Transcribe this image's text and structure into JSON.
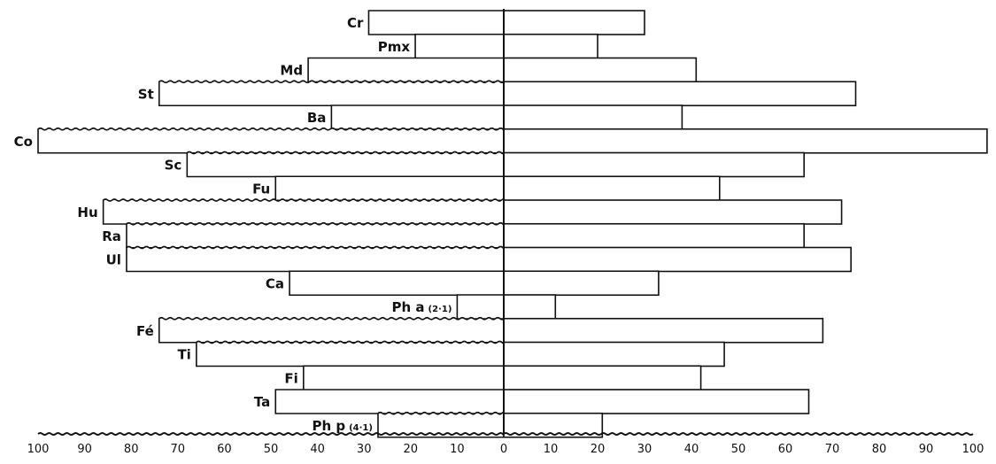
{
  "chart_data": {
    "type": "bar",
    "orientation": "horizontal",
    "layout": "two-sided",
    "categories": [
      {
        "label": "Cr",
        "note": ""
      },
      {
        "label": "Pmx",
        "note": ""
      },
      {
        "label": "Md",
        "note": ""
      },
      {
        "label": "St",
        "note": ""
      },
      {
        "label": "Ba",
        "note": ""
      },
      {
        "label": "Co",
        "note": ""
      },
      {
        "label": "Sc",
        "note": ""
      },
      {
        "label": "Fu",
        "note": ""
      },
      {
        "label": "Hu",
        "note": ""
      },
      {
        "label": "Ra",
        "note": ""
      },
      {
        "label": "Ul",
        "note": ""
      },
      {
        "label": "Ca",
        "note": ""
      },
      {
        "label": "Ph a",
        "note": "(2·1)"
      },
      {
        "label": "Fé",
        "note": ""
      },
      {
        "label": "Ti",
        "note": ""
      },
      {
        "label": "Fi",
        "note": ""
      },
      {
        "label": "Ta",
        "note": ""
      },
      {
        "label": "Ph p",
        "note": "(4·1)"
      }
    ],
    "series": [
      {
        "side": "left",
        "values": [
          29,
          19,
          42,
          74,
          37,
          100,
          68,
          49,
          86,
          81,
          81,
          46,
          10,
          74,
          66,
          43,
          49,
          27
        ]
      },
      {
        "side": "right",
        "values": [
          30,
          20,
          41,
          75,
          38,
          103,
          64,
          46,
          72,
          64,
          74,
          33,
          11,
          68,
          47,
          42,
          65,
          21
        ]
      }
    ],
    "xlim": [
      -100,
      100
    ],
    "xticks": [
      {
        "value": -100,
        "label": "100"
      },
      {
        "value": -90,
        "label": "90"
      },
      {
        "value": -80,
        "label": "80"
      },
      {
        "value": -70,
        "label": "70"
      },
      {
        "value": -60,
        "label": "60"
      },
      {
        "value": -50,
        "label": "50"
      },
      {
        "value": -40,
        "label": "40"
      },
      {
        "value": -30,
        "label": "30"
      },
      {
        "value": -20,
        "label": "20"
      },
      {
        "value": -10,
        "label": "10"
      },
      {
        "value": 0,
        "label": "0"
      },
      {
        "value": 10,
        "label": "10"
      },
      {
        "value": 20,
        "label": "20"
      },
      {
        "value": 30,
        "label": "30"
      },
      {
        "value": 40,
        "label": "40"
      },
      {
        "value": 50,
        "label": "50"
      },
      {
        "value": 60,
        "label": "60"
      },
      {
        "value": 70,
        "label": "70"
      },
      {
        "value": 80,
        "label": "80"
      },
      {
        "value": 90,
        "label": "90"
      },
      {
        "value": 100,
        "label": "100"
      }
    ],
    "wavy_left_ends": [
      false,
      false,
      false,
      true,
      false,
      true,
      true,
      false,
      true,
      true,
      true,
      false,
      false,
      true,
      true,
      false,
      false,
      true
    ],
    "grid": false,
    "legend": "none",
    "colors": {
      "stroke": "#111111",
      "fill": "#ffffff"
    }
  }
}
